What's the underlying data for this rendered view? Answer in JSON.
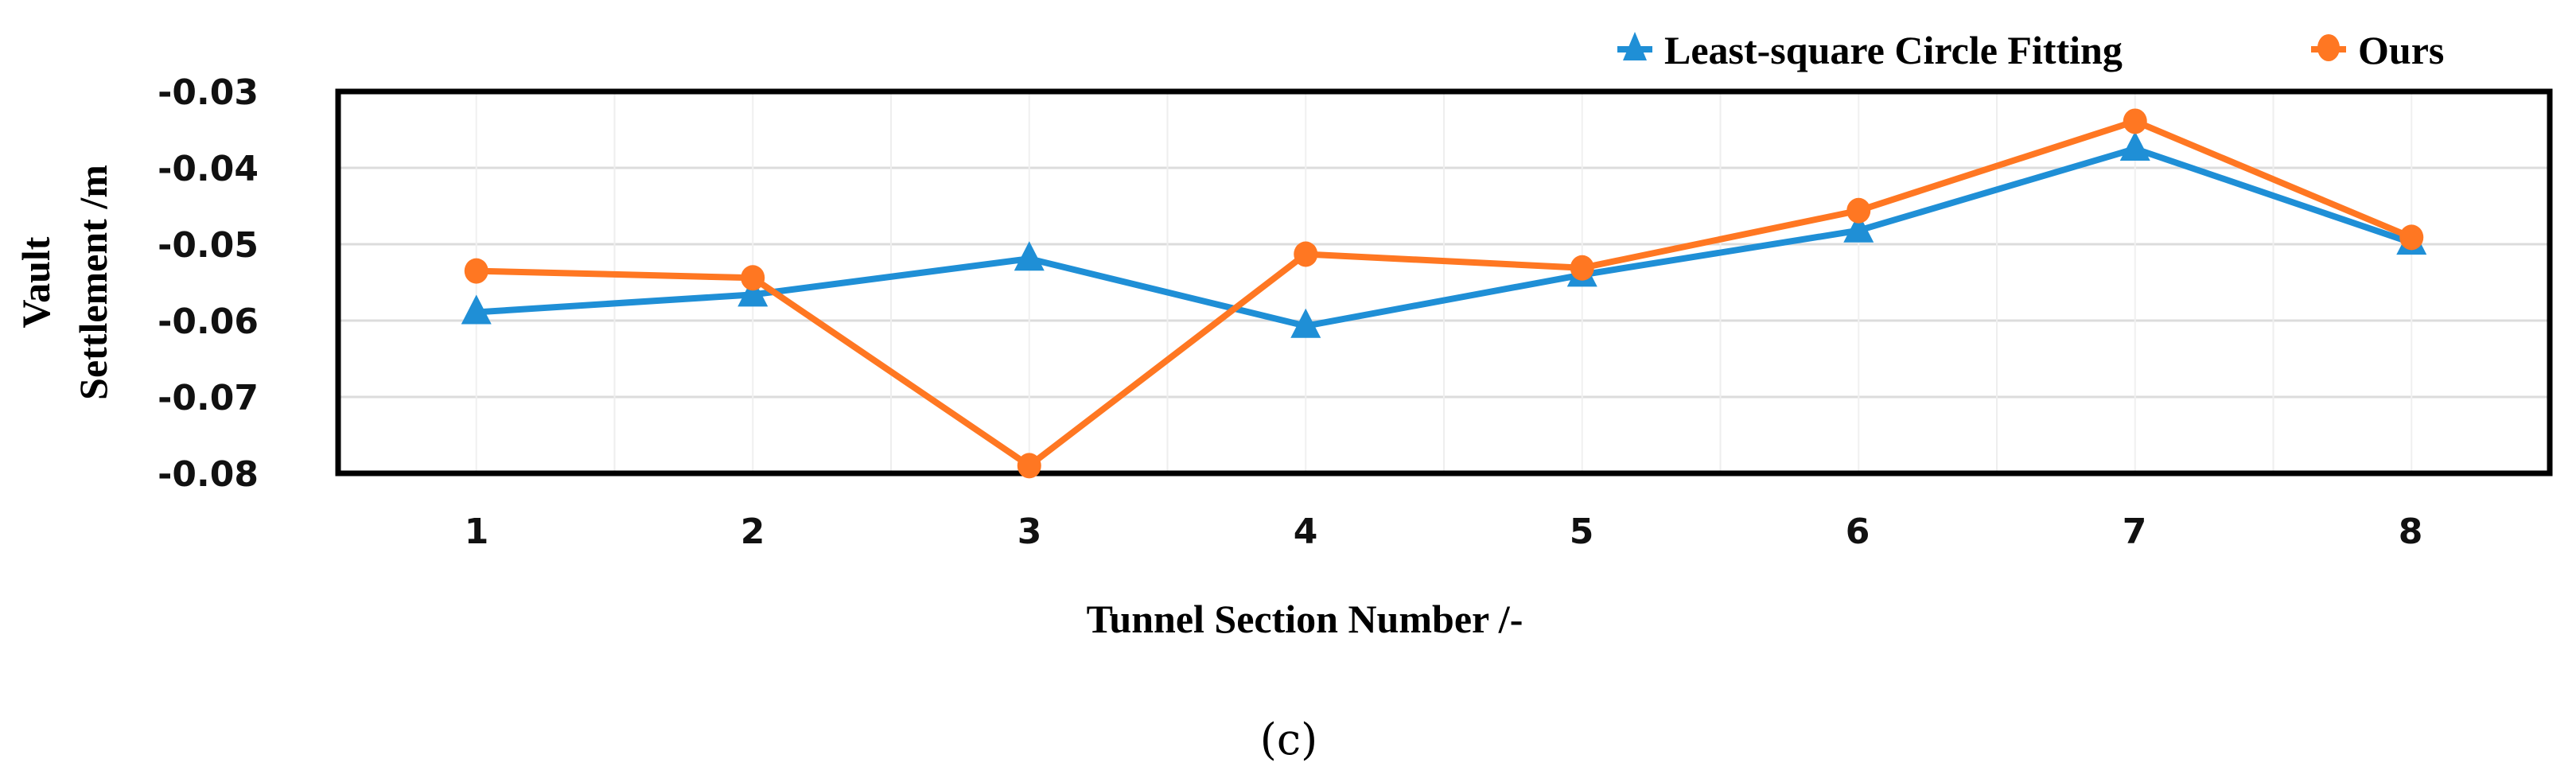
{
  "figure": {
    "caption": "(c)"
  },
  "legend": {
    "items": [
      {
        "label": "Least-square Circle Fitting",
        "color": "#1f8fd6",
        "marker": "triangle"
      },
      {
        "label": "Ours",
        "color": "#ff7722",
        "marker": "circle"
      }
    ]
  },
  "axes": {
    "xlabel": "Tunnel Section Number /-",
    "ylabel_line1": "Vault",
    "ylabel_line2": "Settlement /m",
    "xticks": [
      "1",
      "2",
      "3",
      "4",
      "5",
      "6",
      "7",
      "8"
    ],
    "yticks": [
      "-0.03",
      "-0.04",
      "-0.05",
      "-0.06",
      "-0.07",
      "-0.08"
    ]
  },
  "chart_data": {
    "type": "line",
    "title": "",
    "xlabel": "Tunnel Section Number /-",
    "ylabel": "Vault Settlement /m",
    "categories": [
      "1",
      "2",
      "3",
      "4",
      "5",
      "6",
      "7",
      "8"
    ],
    "ylim": [
      -0.08,
      -0.03
    ],
    "yticks": [
      -0.03,
      -0.04,
      -0.05,
      -0.06,
      -0.07,
      -0.08
    ],
    "grid": true,
    "legend_position": "top-right",
    "series": [
      {
        "name": "Least-square Circle Fitting",
        "color": "#1f8fd6",
        "marker": "triangle",
        "values": [
          -0.0589,
          -0.0566,
          -0.0519,
          -0.0607,
          -0.054,
          -0.0482,
          -0.0375,
          -0.0498
        ]
      },
      {
        "name": "Ours",
        "color": "#ff7722",
        "marker": "circle",
        "values": [
          -0.0535,
          -0.0544,
          -0.079,
          -0.0513,
          -0.0531,
          -0.0456,
          -0.0339,
          -0.0491
        ]
      }
    ]
  }
}
